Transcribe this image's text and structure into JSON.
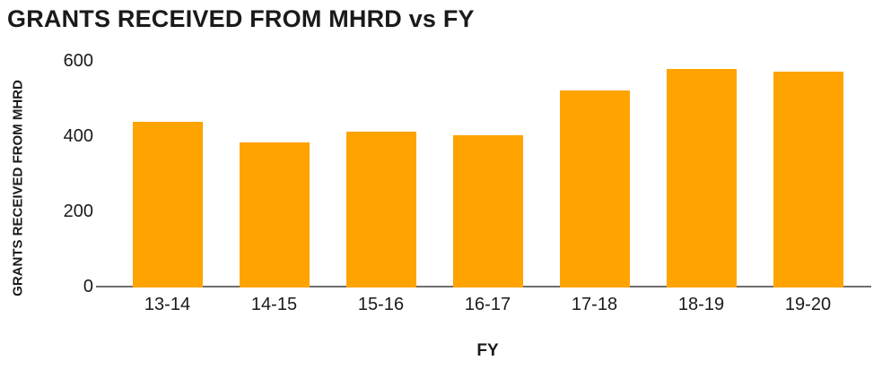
{
  "chart_data": {
    "type": "bar",
    "title": "GRANTS RECEIVED FROM MHRD vs FY",
    "xlabel": "FY",
    "ylabel": "GRANTS RECEIVED FROM MHRD",
    "categories": [
      "13-14",
      "14-15",
      "15-16",
      "16-17",
      "17-18",
      "18-19",
      "19-20"
    ],
    "values": [
      440,
      385,
      415,
      405,
      525,
      580,
      575
    ],
    "yticks": [
      0,
      200,
      400,
      600
    ],
    "ylim": [
      0,
      600
    ],
    "grid": false,
    "legend": false,
    "colors": {
      "bar": "#FFA300",
      "axis_line": "#6E6E6E",
      "text": "#1A1A1A",
      "background": "#FFFFFF"
    }
  }
}
